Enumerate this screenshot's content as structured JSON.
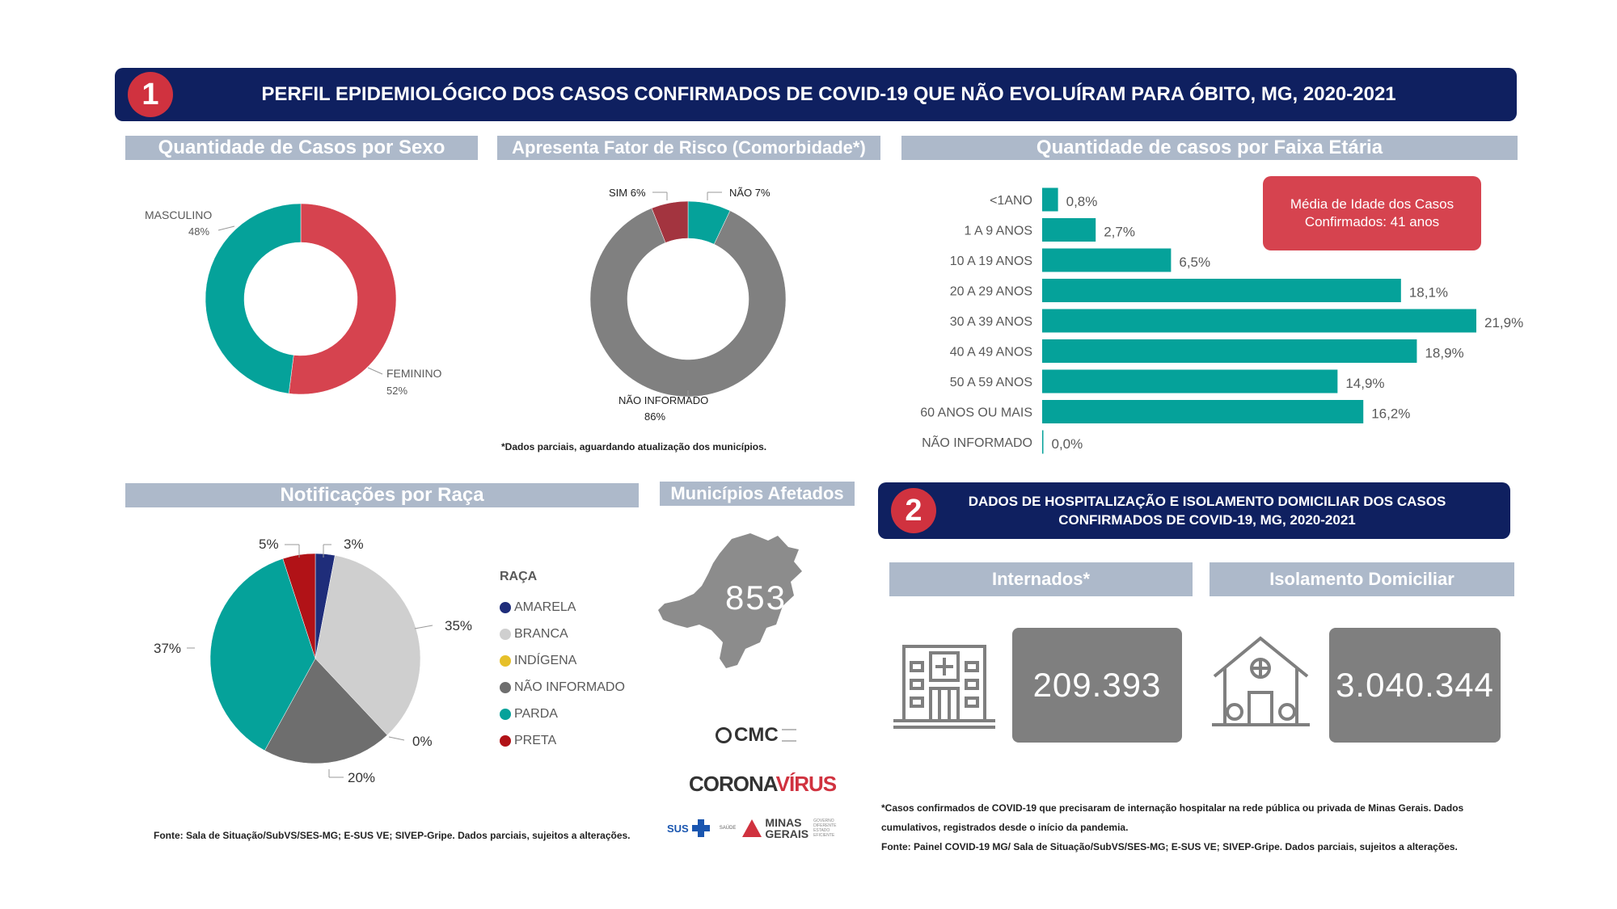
{
  "section1": {
    "number": "1",
    "title": "PERFIL EPIDEMIOLÓGICO DOS CASOS CONFIRMADOS DE COVID-19 QUE NÃO EVOLUÍRAM PARA ÓBITO, MG, 2020-2021"
  },
  "sexo": {
    "title": "Quantidade de Casos por Sexo"
  },
  "risco": {
    "title": "Apresenta Fator de Risco (Comorbidade*)",
    "note": "*Dados parciais, aguardando atualização dos municípios."
  },
  "faixa": {
    "title": "Quantidade de casos por Faixa Etária"
  },
  "media": {
    "text": "Média de Idade dos Casos Confirmados: 41 anos"
  },
  "raca": {
    "title": "Notificações por Raça",
    "legend_title": "RAÇA"
  },
  "municipios": {
    "title": "Municípios Afetados",
    "value": "853"
  },
  "logos": {
    "cmc": "CMC",
    "corona1": "CORONA",
    "corona2": "VÍRUS",
    "sus": "SUS",
    "saude": "SAÚDE",
    "minas1": "MINAS",
    "minas2": "GERAIS",
    "gov": "GOVERNO DIFERENTE ESTADO EFICIENTE"
  },
  "source_left": "Fonte: Sala de Situação/SubVS/SES-MG; E-SUS VE; SIVEP-Gripe. Dados parciais, sujeitos a alterações.",
  "section2": {
    "number": "2",
    "title_line1": "DADOS DE HOSPITALIZAÇÃO E ISOLAMENTO DOMICILIAR DOS CASOS",
    "title_line2": "CONFIRMADOS DE COVID-19, MG, 2020-2021"
  },
  "internados": {
    "title": "Internados*",
    "value": "209.393"
  },
  "isolamento": {
    "title": "Isolamento Domiciliar",
    "value": "3.040.344"
  },
  "notes_right": {
    "line1": "*Casos confirmados de COVID-19 que precisaram de internação hospitalar na rede pública ou privada de Minas Gerais. Dados",
    "line2": "cumulativos, registrados desde o início da pandemia.",
    "line3": "Fonte: Painel COVID-19 MG/ Sala de Situação/SubVS/SES-MG; E-SUS VE; SIVEP-Gripe. Dados parciais, sujeitos a alterações."
  },
  "colors": {
    "navy": "#0f2060",
    "red": "#d0323f",
    "teal": "#05a29a",
    "gray": "#808080",
    "header": "#adb9ca"
  },
  "chart_data": [
    {
      "type": "pie",
      "title": "Quantidade de Casos por Sexo",
      "categories": [
        "FEMININO",
        "MASCULINO"
      ],
      "values": [
        52,
        48
      ],
      "value_labels": [
        "52%",
        "48%"
      ],
      "colors": [
        "#d6434f",
        "#05a29a"
      ]
    },
    {
      "type": "pie",
      "title": "Apresenta Fator de Risco (Comorbidade*)",
      "categories": [
        "NÃO",
        "NÃO INFORMADO",
        "SIM"
      ],
      "values": [
        7,
        86,
        6
      ],
      "value_labels": [
        "7%",
        "86%",
        "6%"
      ],
      "colors": [
        "#05a29a",
        "#808080",
        "#a3343f"
      ]
    },
    {
      "type": "bar",
      "title": "Quantidade de casos por Faixa Etária",
      "categories": [
        "<1ANO",
        "1 A 9 ANOS",
        "10 A 19 ANOS",
        "20 A 29 ANOS",
        "30 A 39 ANOS",
        "40 A 49 ANOS",
        "50 A 59 ANOS",
        "60 ANOS OU MAIS",
        "NÃO INFORMADO"
      ],
      "values": [
        0.8,
        2.7,
        6.5,
        18.1,
        21.9,
        18.9,
        14.9,
        16.2,
        0.0
      ],
      "value_labels": [
        "0,8%",
        "2,7%",
        "6,5%",
        "18,1%",
        "21,9%",
        "18,9%",
        "14,9%",
        "16,2%",
        "0,0%"
      ],
      "orientation": "horizontal",
      "color": "#05a29a"
    },
    {
      "type": "pie",
      "title": "Notificações por Raça",
      "legend_title": "RAÇA",
      "categories": [
        "AMARELA",
        "BRANCA",
        "INDÍGENA",
        "NÃO INFORMADO",
        "PARDA",
        "PRETA"
      ],
      "values": [
        3,
        35,
        0,
        20,
        37,
        5
      ],
      "value_labels": [
        "3%",
        "35%",
        "0%",
        "20%",
        "37%",
        "5%"
      ],
      "colors": [
        "#1f2d7a",
        "#cfcfcf",
        "#e6c02a",
        "#6e6e6e",
        "#05a29a",
        "#b11217"
      ],
      "legend_position": "right"
    }
  ]
}
